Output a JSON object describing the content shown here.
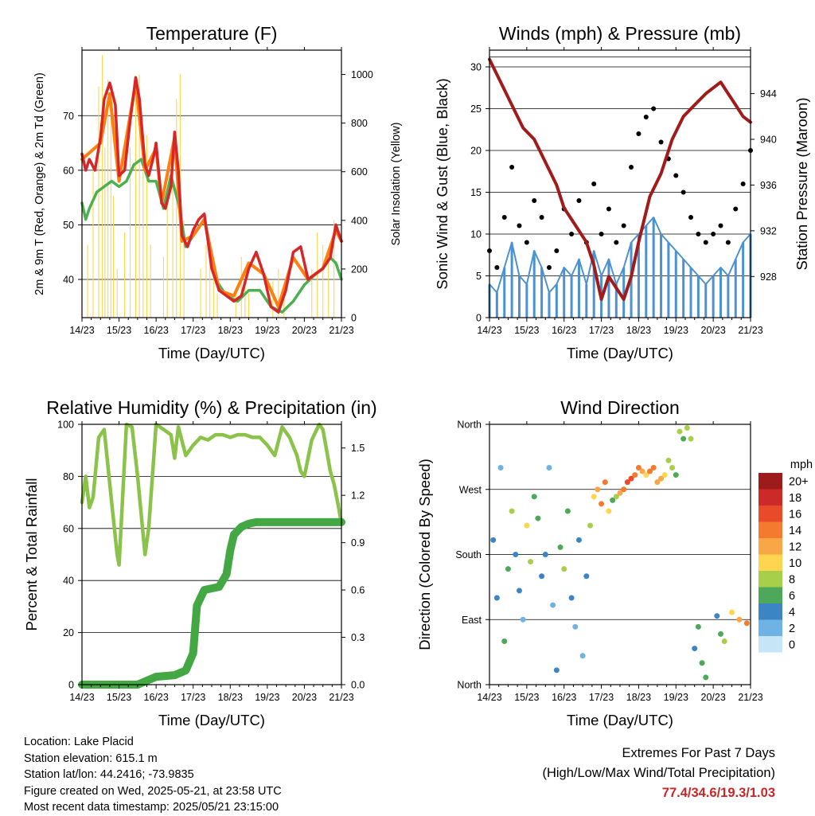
{
  "time_ticks": [
    "14/23",
    "15/23",
    "16/23",
    "17/23",
    "18/23",
    "19/23",
    "20/23",
    "21/23"
  ],
  "chart_data": [
    {
      "id": "temperature",
      "type": "line",
      "title": "Temperature (F)",
      "xlabel": "Time (Day/UTC)",
      "ylabel": "2m & 9m T (Red, Orange) & 2m Td (Green)",
      "y2label": "Solar Insolation (Yellow)",
      "ylim": [
        33,
        82
      ],
      "y2lim": [
        0,
        1100
      ],
      "yticks": [
        40,
        50,
        60,
        70
      ],
      "y2ticks": [
        0,
        200,
        400,
        600,
        800,
        1000
      ],
      "x_unit": "days since 14/23 UTC",
      "grid": true,
      "series": [
        {
          "name": "2m T",
          "color": "#d62728",
          "x": [
            0,
            0.1,
            0.2,
            0.35,
            0.5,
            0.6,
            0.75,
            0.9,
            1.0,
            1.15,
            1.3,
            1.45,
            1.55,
            1.7,
            1.8,
            1.95,
            2.0,
            2.15,
            2.25,
            2.4,
            2.5,
            2.6,
            2.7,
            2.85,
            3.0,
            3.15,
            3.3,
            3.5,
            3.7,
            3.9,
            4.1,
            4.3,
            4.5,
            4.7,
            4.9,
            5.1,
            5.3,
            5.5,
            5.7,
            5.9,
            6.1,
            6.3,
            6.5,
            6.7,
            6.85,
            7.0
          ],
          "y": [
            63,
            60,
            62,
            60,
            66,
            73,
            76,
            72,
            59,
            60,
            69,
            77,
            73,
            61,
            59,
            63,
            65,
            54,
            53,
            57,
            67,
            60,
            48,
            46,
            49,
            51,
            52,
            42,
            38,
            37,
            36,
            37,
            42,
            45,
            41,
            35,
            34,
            38,
            45,
            46,
            40,
            41,
            42,
            44,
            50,
            47
          ]
        },
        {
          "name": "9m T",
          "color": "#ff7f0e",
          "x": [
            0,
            0.5,
            0.75,
            1.0,
            1.45,
            1.7,
            2.0,
            2.15,
            2.5,
            2.7,
            3.0,
            3.3,
            3.7,
            4.1,
            4.5,
            4.9,
            5.3,
            5.7,
            6.1,
            6.5,
            6.85,
            7.0
          ],
          "y": [
            62,
            65,
            74,
            58,
            76,
            60,
            64,
            54,
            66,
            47,
            48,
            51,
            38,
            37,
            43,
            41,
            35,
            44,
            40,
            42,
            49,
            47
          ]
        },
        {
          "name": "2m Td",
          "color": "#4caf50",
          "x": [
            0,
            0.1,
            0.2,
            0.4,
            0.6,
            0.8,
            1.0,
            1.2,
            1.4,
            1.6,
            1.8,
            2.0,
            2.2,
            2.4,
            2.6,
            2.8,
            3.0,
            3.3,
            3.6,
            3.9,
            4.2,
            4.5,
            4.8,
            5.1,
            5.4,
            5.7,
            6.0,
            6.3,
            6.5,
            6.7,
            6.85,
            7.0
          ],
          "y": [
            54,
            51,
            53,
            56,
            57,
            58,
            57,
            58,
            61,
            62,
            58,
            58,
            53,
            59,
            54,
            46,
            48,
            51,
            40,
            37,
            36,
            38,
            38,
            35,
            34,
            36,
            39,
            41,
            42,
            44,
            43,
            40
          ]
        },
        {
          "name": "Solar Insolation",
          "color": "#ffd54f",
          "axis": "y2",
          "x": [
            0.15,
            0.3,
            0.45,
            0.55,
            0.62,
            0.7,
            0.78,
            0.85,
            0.95,
            1.15,
            1.3,
            1.45,
            1.55,
            1.65,
            1.75,
            1.85,
            2.2,
            2.3,
            2.45,
            2.55,
            2.65,
            2.75,
            3.2,
            3.35,
            3.45,
            3.55,
            3.65,
            4.15,
            4.3,
            4.4,
            4.5,
            5.15,
            5.3,
            5.45,
            6.2,
            6.35,
            6.5,
            6.65,
            6.8
          ],
          "y": [
            300,
            600,
            950,
            1080,
            700,
            980,
            850,
            500,
            200,
            350,
            700,
            900,
            1000,
            600,
            750,
            300,
            250,
            500,
            700,
            900,
            1000,
            400,
            200,
            300,
            250,
            200,
            100,
            120,
            250,
            200,
            100,
            150,
            200,
            100,
            200,
            350,
            300,
            250,
            400
          ]
        }
      ]
    },
    {
      "id": "winds",
      "type": "scatter",
      "title": "Winds (mph) & Pressure (mb)",
      "xlabel": "Time (Day/UTC)",
      "ylabel": "Sonic Wind & Gust (Blue, Black)",
      "y2label": "Station Pressure (Maroon)",
      "ylim": [
        0,
        32
      ],
      "y2lim": [
        924.4,
        947.8
      ],
      "yticks": [
        0,
        5,
        10,
        15,
        20,
        25,
        30
      ],
      "y2ticks": [
        928,
        932,
        936,
        940,
        944
      ],
      "x_unit": "days since 14/23 UTC",
      "grid": true,
      "series": [
        {
          "name": "Sonic Wind",
          "color": "#4c91d0",
          "x": [
            0,
            0.2,
            0.4,
            0.6,
            0.8,
            1.0,
            1.2,
            1.4,
            1.6,
            1.8,
            2.0,
            2.2,
            2.4,
            2.6,
            2.8,
            3.0,
            3.2,
            3.4,
            3.6,
            3.8,
            4.0,
            4.2,
            4.4,
            4.6,
            4.8,
            5.0,
            5.2,
            5.4,
            5.6,
            5.8,
            6.0,
            6.2,
            6.4,
            6.6,
            6.8,
            7.0
          ],
          "y": [
            4,
            3,
            6,
            9,
            5,
            4,
            8,
            6,
            3,
            4,
            6,
            5,
            7,
            4,
            8,
            5,
            7,
            4,
            6,
            9,
            10,
            11,
            12,
            10,
            9,
            8,
            7,
            6,
            5,
            4,
            5,
            6,
            5,
            7,
            9,
            10
          ]
        },
        {
          "name": "Gust",
          "color": "#000000",
          "x": [
            0,
            0.2,
            0.4,
            0.6,
            0.8,
            1.0,
            1.2,
            1.4,
            1.6,
            1.8,
            2.0,
            2.2,
            2.4,
            2.6,
            2.8,
            3.0,
            3.2,
            3.4,
            3.6,
            3.8,
            4.0,
            4.2,
            4.4,
            4.6,
            4.8,
            5.0,
            5.2,
            5.4,
            5.6,
            5.8,
            6.0,
            6.2,
            6.4,
            6.6,
            6.8,
            7.0
          ],
          "y": [
            8,
            6,
            12,
            18,
            11,
            9,
            14,
            12,
            6,
            8,
            13,
            10,
            14,
            9,
            16,
            10,
            13,
            9,
            11,
            18,
            22,
            24,
            25,
            21,
            19,
            17,
            15,
            12,
            10,
            9,
            10,
            11,
            9,
            13,
            16,
            20
          ]
        },
        {
          "name": "Station Pressure",
          "color": "#a01c1c",
          "axis": "y2",
          "x": [
            0,
            0.3,
            0.6,
            0.9,
            1.2,
            1.5,
            1.8,
            2.0,
            2.2,
            2.4,
            2.6,
            2.8,
            3.0,
            3.2,
            3.4,
            3.6,
            3.8,
            4.0,
            4.3,
            4.6,
            4.9,
            5.2,
            5.5,
            5.8,
            6.0,
            6.2,
            6.4,
            6.6,
            6.8,
            7.0
          ],
          "y": [
            947,
            945,
            943,
            941,
            940,
            938,
            936,
            934,
            933,
            932,
            931,
            929,
            926,
            928,
            927,
            926,
            928,
            931,
            935,
            937,
            940,
            942,
            943,
            944,
            944.5,
            945,
            944,
            943,
            942,
            941.5
          ]
        }
      ]
    },
    {
      "id": "humidity",
      "type": "line",
      "title": "Relative Humidity (%) & Precipitation (in)",
      "xlabel": "Time (Day/UTC)",
      "ylabel": "Percent & Total Rainfall",
      "ylim": [
        0,
        100
      ],
      "y2lim": [
        0,
        1.65
      ],
      "yticks": [
        0,
        20,
        40,
        60,
        80,
        100
      ],
      "y2ticks": [
        0.0,
        0.3,
        0.6,
        0.9,
        1.2,
        1.5
      ],
      "x_unit": "days since 14/23 UTC",
      "grid": true,
      "series": [
        {
          "name": "Relative Humidity",
          "color": "#8bc34a",
          "x": [
            0,
            0.1,
            0.2,
            0.3,
            0.45,
            0.6,
            0.8,
            0.95,
            1.0,
            1.2,
            1.35,
            1.5,
            1.7,
            1.8,
            1.95,
            2.0,
            2.2,
            2.4,
            2.5,
            2.6,
            2.8,
            3.0,
            3.2,
            3.4,
            3.6,
            3.8,
            4.0,
            4.2,
            4.4,
            4.6,
            4.8,
            5.0,
            5.2,
            5.4,
            5.6,
            5.8,
            5.9,
            6.0,
            6.2,
            6.4,
            6.5,
            6.6,
            6.7,
            6.8,
            6.9,
            7.0
          ],
          "y": [
            70,
            80,
            68,
            72,
            95,
            98,
            70,
            50,
            46,
            100,
            99,
            80,
            50,
            60,
            90,
            100,
            98,
            96,
            87,
            99,
            88,
            92,
            95,
            94,
            96,
            96,
            95,
            96,
            96,
            95,
            95,
            92,
            88,
            99,
            95,
            88,
            82,
            80,
            94,
            100,
            98,
            90,
            82,
            77,
            70,
            62
          ]
        },
        {
          "name": "Total Rainfall",
          "color": "#43a843",
          "axis": "y2",
          "x": [
            0,
            0.5,
            1.0,
            1.5,
            2.0,
            2.5,
            2.8,
            3.0,
            3.1,
            3.2,
            3.3,
            3.5,
            3.7,
            3.9,
            4.0,
            4.1,
            4.3,
            4.5,
            4.7,
            5.0,
            5.5,
            6.0,
            6.5,
            7.0
          ],
          "y": [
            0,
            0,
            0,
            0,
            0.05,
            0.06,
            0.09,
            0.2,
            0.5,
            0.55,
            0.6,
            0.61,
            0.62,
            0.7,
            0.85,
            0.95,
            1.0,
            1.02,
            1.03,
            1.03,
            1.03,
            1.03,
            1.03,
            1.03
          ]
        }
      ]
    },
    {
      "id": "wind_direction",
      "type": "scatter",
      "title": "Wind Direction",
      "xlabel": "Time (Day/UTC)",
      "ylabel": "Direction (Colored By Speed)",
      "yticks": [
        "North",
        "East",
        "South",
        "West",
        "North"
      ],
      "ylim": [
        0,
        360
      ],
      "x_unit": "days since 14/23 UTC",
      "grid": true,
      "legend_title": "mph",
      "colorbar_labels": [
        "20+",
        "18",
        "16",
        "14",
        "12",
        "10",
        "8",
        "6",
        "4",
        "2",
        "0"
      ],
      "colorbar_colors": [
        "#9e1b1b",
        "#cc2929",
        "#e84a2a",
        "#f47a30",
        "#f9a646",
        "#ffd54f",
        "#a8cf4a",
        "#4ea85a",
        "#3c84c4",
        "#6fb3e4",
        "#c6e6f7"
      ],
      "series": [
        {
          "name": "Wind Direction",
          "x": [
            0.1,
            0.2,
            0.3,
            0.4,
            0.5,
            0.6,
            0.7,
            0.8,
            0.9,
            1.0,
            1.1,
            1.2,
            1.3,
            1.4,
            1.5,
            1.6,
            1.7,
            1.8,
            1.9,
            2.0,
            2.1,
            2.2,
            2.3,
            2.4,
            2.5,
            2.6,
            2.7,
            2.8,
            2.9,
            3.0,
            3.1,
            3.2,
            3.3,
            3.4,
            3.5,
            3.6,
            3.7,
            3.8,
            3.9,
            4.0,
            4.1,
            4.2,
            4.3,
            4.4,
            4.5,
            4.6,
            4.7,
            4.8,
            4.9,
            5.0,
            5.1,
            5.2,
            5.3,
            5.4,
            5.5,
            5.6,
            5.7,
            5.8,
            6.1,
            6.2,
            6.3,
            6.5,
            6.7,
            6.9
          ],
          "y": [
            200,
            120,
            300,
            60,
            160,
            240,
            180,
            130,
            90,
            220,
            170,
            260,
            230,
            150,
            180,
            300,
            110,
            20,
            190,
            160,
            240,
            120,
            80,
            200,
            40,
            150,
            220,
            260,
            270,
            250,
            280,
            240,
            255,
            260,
            265,
            270,
            280,
            285,
            290,
            300,
            295,
            290,
            295,
            300,
            280,
            285,
            290,
            310,
            300,
            290,
            350,
            340,
            355,
            340,
            50,
            80,
            30,
            10,
            95,
            70,
            60,
            100,
            90,
            85
          ],
          "speed": [
            3,
            4,
            2,
            5,
            6,
            8,
            4,
            3,
            2,
            10,
            7,
            5,
            6,
            4,
            3,
            2,
            1,
            4,
            6,
            8,
            5,
            3,
            2,
            4,
            2,
            3,
            8,
            10,
            12,
            14,
            13,
            9,
            6,
            8,
            12,
            14,
            15,
            16,
            13,
            14,
            12,
            10,
            14,
            13,
            11,
            12,
            10,
            8,
            7,
            6,
            7,
            6,
            8,
            7,
            4,
            5,
            6,
            5,
            4,
            6,
            8,
            10,
            12,
            14
          ]
        }
      ]
    }
  ],
  "info": {
    "location": "Location: Lake Placid",
    "elevation": "Station elevation: 615.1 m",
    "latlon": "Station lat/lon: 44.2416; -73.9835",
    "created": "Figure created on Wed, 2025-05-21, at 23:58 UTC",
    "recent": "Most recent data timestamp: 2025/05/21 23:15:00"
  },
  "extremes": {
    "title": "Extremes For Past 7 Days",
    "subtitle": "(High/Low/Max Wind/Total Precipitation)",
    "values": "77.4/34.6/19.3/1.03"
  }
}
